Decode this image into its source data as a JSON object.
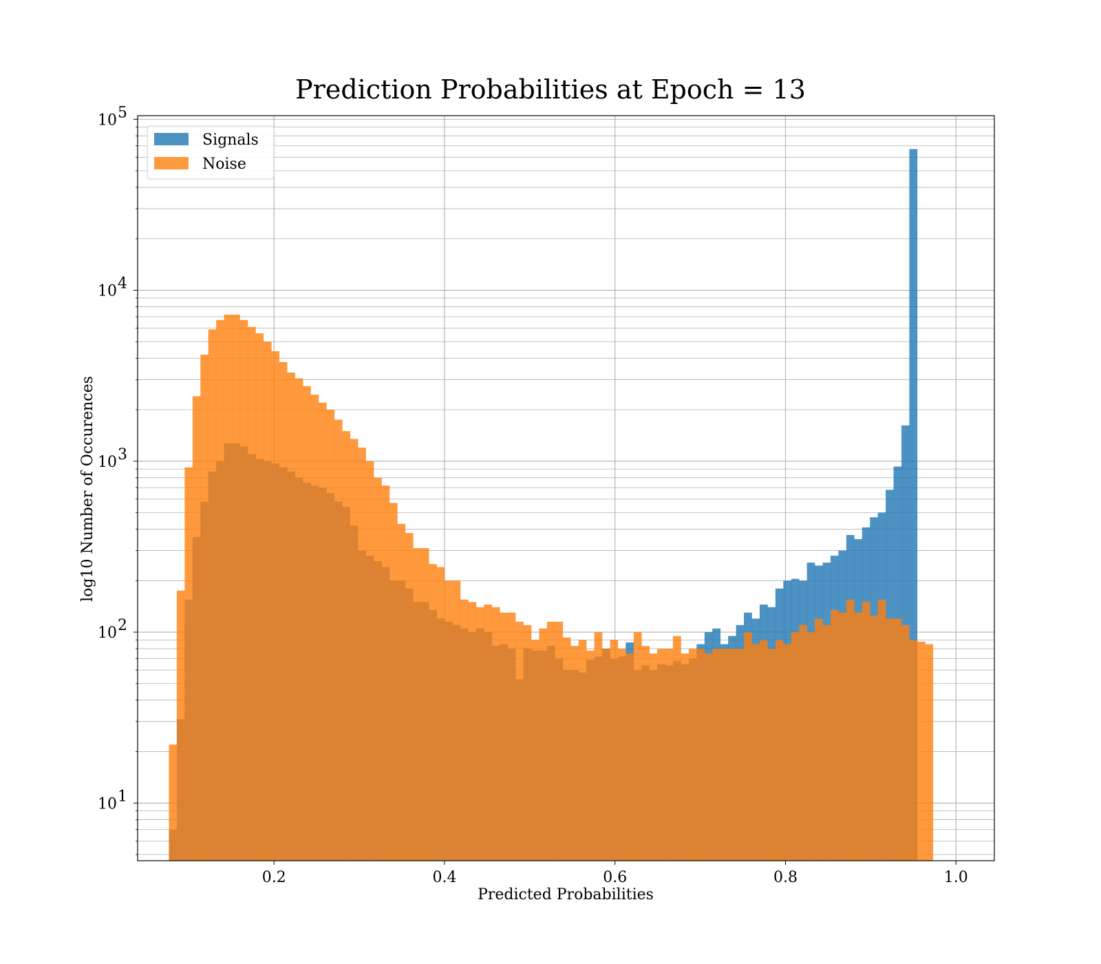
{
  "chart_data": {
    "type": "histogram",
    "title": "Prediction Probabilities at Epoch = 13",
    "xlabel": "Predicted Probabilities",
    "ylabel": "log10 Number of Occurences",
    "x_range": [
      0.04,
      1.045
    ],
    "y_scale": "log",
    "y_range": [
      4.6,
      105000
    ],
    "x_ticks": [
      0.2,
      0.4,
      0.6,
      0.8,
      1.0
    ],
    "x_tick_labels": [
      "0.2",
      "0.4",
      "0.6",
      "0.8",
      "1.0"
    ],
    "y_tick_bases": [
      "10",
      "10",
      "10",
      "10",
      "10"
    ],
    "y_tick_exponents": [
      "1",
      "2",
      "3",
      "4",
      "5"
    ],
    "y_tick_values": [
      10,
      100,
      1000,
      10000,
      100000
    ],
    "grid": true,
    "legend_position": "top-left",
    "bins_start": 0.0767,
    "bin_width": 0.00924,
    "series": [
      {
        "name": "Signals",
        "color": "#1f77b4",
        "values": [
          7,
          31,
          155,
          360,
          580,
          870,
          1000,
          1270,
          1270,
          1220,
          1100,
          1030,
          1000,
          970,
          920,
          870,
          800,
          750,
          720,
          700,
          650,
          580,
          540,
          420,
          300,
          280,
          260,
          240,
          200,
          200,
          180,
          150,
          150,
          135,
          120,
          115,
          110,
          105,
          100,
          105,
          100,
          83,
          85,
          80,
          53,
          80,
          78,
          78,
          83,
          70,
          60,
          60,
          58,
          69,
          72,
          80,
          70,
          72,
          87,
          60,
          64,
          60,
          65,
          64,
          68,
          65,
          70,
          85,
          100,
          105,
          85,
          95,
          110,
          130,
          120,
          145,
          140,
          180,
          200,
          205,
          200,
          255,
          245,
          255,
          280,
          300,
          370,
          350,
          410,
          470,
          500,
          680,
          930,
          1620,
          67000
        ]
      },
      {
        "name": "Noise",
        "color": "#ff7f0e",
        "values": [
          22,
          175,
          920,
          2400,
          4200,
          5900,
          6700,
          7200,
          7200,
          6700,
          6100,
          5600,
          5000,
          4400,
          3800,
          3300,
          3050,
          2750,
          2450,
          2200,
          2000,
          1750,
          1500,
          1350,
          1200,
          1000,
          800,
          720,
          570,
          430,
          380,
          310,
          310,
          250,
          240,
          200,
          200,
          155,
          150,
          140,
          145,
          140,
          130,
          130,
          115,
          110,
          90,
          105,
          115,
          115,
          93,
          83,
          90,
          78,
          100,
          80,
          90,
          80,
          75,
          100,
          83,
          75,
          80,
          80,
          95,
          75,
          80,
          80,
          75,
          80,
          80,
          80,
          80,
          100,
          85,
          90,
          80,
          90,
          85,
          100,
          110,
          100,
          120,
          110,
          135,
          130,
          155,
          130,
          150,
          125,
          155,
          120,
          120,
          110,
          90,
          88,
          85
        ]
      }
    ]
  }
}
